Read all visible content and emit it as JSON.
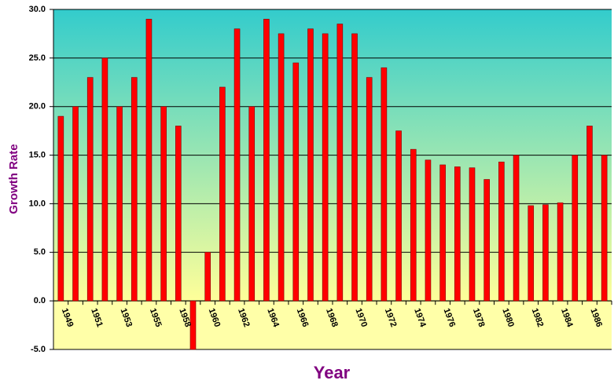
{
  "chart_data": {
    "type": "bar",
    "x_label": "Year",
    "y_label": "Growth Rate",
    "categories": [
      "1949",
      null,
      "1951",
      null,
      "1953",
      null,
      "1955",
      null,
      "1958",
      null,
      "1960",
      null,
      "1962",
      null,
      "1964",
      null,
      "1966",
      null,
      "1968",
      null,
      "1970",
      null,
      "1972",
      null,
      "1974",
      null,
      "1976",
      null,
      "1978",
      null,
      "1980",
      null,
      "1982",
      null,
      "1984",
      null,
      "1986",
      null
    ],
    "values": [
      19,
      20,
      23,
      25,
      20,
      23,
      29,
      20,
      18,
      -5,
      5,
      22,
      28,
      20,
      29,
      27.5,
      24.5,
      28,
      27.5,
      28.5,
      27.5,
      23,
      24,
      17.5,
      15.6,
      14.5,
      14,
      13.8,
      13.7,
      12.5,
      14.3,
      15,
      9.8,
      9.9,
      10.1,
      15,
      18,
      15
    ],
    "color": "#ff0000",
    "ylim": [
      -5,
      30
    ],
    "yticks": [
      {
        "value": -5,
        "label": "-5.0"
      },
      {
        "value": 0,
        "label": "0.0"
      },
      {
        "value": 5,
        "label": "5.0"
      },
      {
        "value": 10,
        "label": "10.0"
      },
      {
        "value": 15,
        "label": "15.0"
      },
      {
        "value": 20,
        "label": "20.0"
      },
      {
        "value": 25,
        "label": "25.0"
      },
      {
        "value": 30,
        "label": "30.0"
      }
    ],
    "grid": true
  }
}
